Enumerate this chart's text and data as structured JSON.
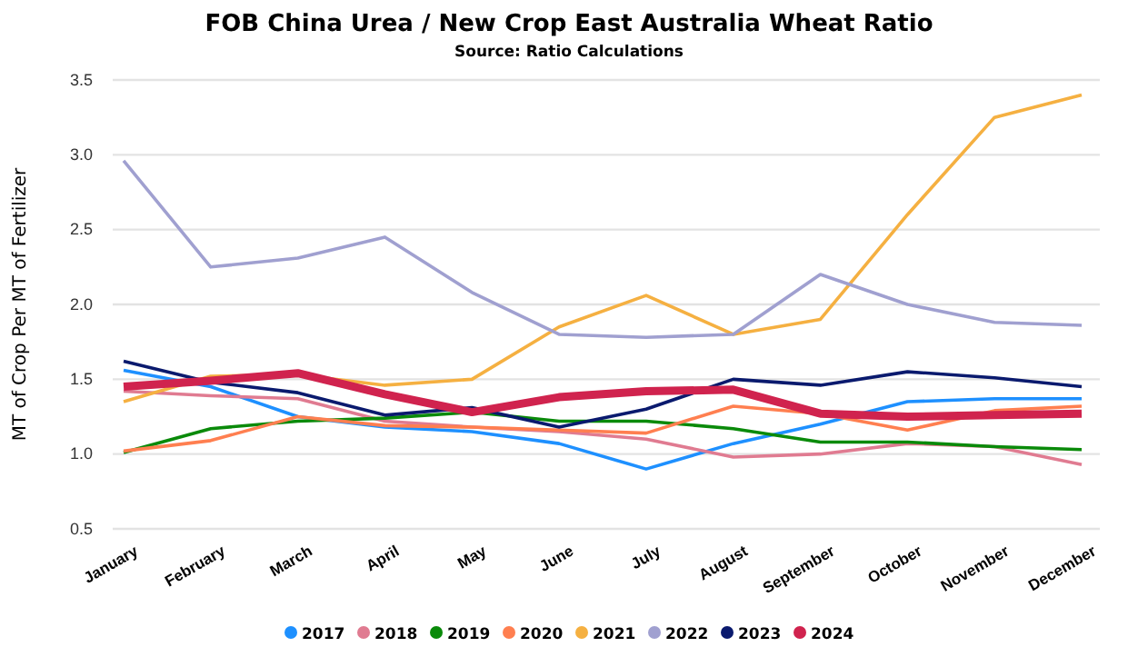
{
  "chart_data": {
    "type": "line",
    "title": "FOB China Urea / New Crop East Australia Wheat Ratio",
    "subtitle": "Source: Ratio Calculations",
    "ylabel": "MT of Crop Per MT of Fertilizer",
    "categories": [
      "January",
      "February",
      "March",
      "April",
      "May",
      "June",
      "July",
      "August",
      "September",
      "October",
      "November",
      "December"
    ],
    "series": [
      {
        "name": "2017",
        "color": "#1e90ff",
        "values": [
          1.56,
          1.45,
          1.25,
          1.18,
          1.15,
          1.07,
          0.9,
          1.07,
          1.2,
          1.35,
          1.37,
          1.37
        ]
      },
      {
        "name": "2018",
        "color": "#e07b91",
        "values": [
          1.42,
          1.39,
          1.37,
          1.22,
          1.18,
          1.15,
          1.1,
          0.98,
          1.0,
          1.07,
          1.05,
          0.93
        ]
      },
      {
        "name": "2019",
        "color": "#0a8a0a",
        "values": [
          1.01,
          1.17,
          1.22,
          1.24,
          1.28,
          1.22,
          1.22,
          1.17,
          1.08,
          1.08,
          1.05,
          1.03
        ]
      },
      {
        "name": "2020",
        "color": "#ff7f50",
        "values": [
          1.02,
          1.09,
          1.25,
          1.19,
          1.18,
          1.16,
          1.14,
          1.32,
          1.27,
          1.16,
          1.29,
          1.32
        ]
      },
      {
        "name": "2021",
        "color": "#f5b041",
        "values": [
          1.35,
          1.52,
          1.53,
          1.46,
          1.5,
          1.85,
          2.06,
          1.8,
          1.9,
          2.6,
          3.25,
          3.4
        ]
      },
      {
        "name": "2022",
        "color": "#a0a0d0",
        "values": [
          2.96,
          2.25,
          2.31,
          2.45,
          2.08,
          1.8,
          1.78,
          1.8,
          2.2,
          2.0,
          1.88,
          1.86
        ]
      },
      {
        "name": "2023",
        "color": "#0a1a6e",
        "values": [
          1.62,
          1.48,
          1.41,
          1.26,
          1.31,
          1.18,
          1.3,
          1.5,
          1.46,
          1.55,
          1.51,
          1.45
        ]
      },
      {
        "name": "2024",
        "color": "#d0234e",
        "values": [
          1.45,
          1.49,
          1.54,
          1.4,
          1.28,
          1.38,
          1.42,
          1.43,
          1.27,
          1.25,
          1.26,
          1.27
        ]
      }
    ],
    "ylim": [
      0.5,
      3.5
    ],
    "yticks": [
      0.5,
      {
        "value": 1,
        "label": "1.0"
      },
      1.5,
      {
        "value": 2,
        "label": "2.0"
      },
      2.5,
      {
        "value": 3,
        "label": "3.0"
      },
      3.5
    ],
    "grid": "y",
    "legend": "bottom",
    "marker": "none",
    "line_style": "solid"
  }
}
